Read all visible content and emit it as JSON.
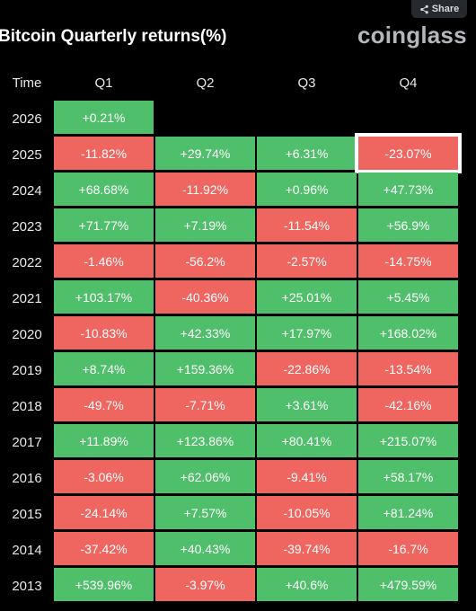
{
  "header": {
    "title": "Bitcoin Quarterly returns(%)",
    "logo": "coinglass",
    "share_label": "Share"
  },
  "table": {
    "time_label": "Time",
    "columns": [
      "Q1",
      "Q2",
      "Q3",
      "Q4"
    ],
    "rows": [
      {
        "year": "2026",
        "values": [
          "+0.21%",
          "",
          "",
          ""
        ]
      },
      {
        "year": "2025",
        "values": [
          "-11.82%",
          "+29.74%",
          "+6.31%",
          "-23.07%"
        ]
      },
      {
        "year": "2024",
        "values": [
          "+68.68%",
          "-11.92%",
          "+0.96%",
          "+47.73%"
        ]
      },
      {
        "year": "2023",
        "values": [
          "+71.77%",
          "+7.19%",
          "-11.54%",
          "+56.9%"
        ]
      },
      {
        "year": "2022",
        "values": [
          "-1.46%",
          "-56.2%",
          "-2.57%",
          "-14.75%"
        ]
      },
      {
        "year": "2021",
        "values": [
          "+103.17%",
          "-40.36%",
          "+25.01%",
          "+5.45%"
        ]
      },
      {
        "year": "2020",
        "values": [
          "-10.83%",
          "+42.33%",
          "+17.97%",
          "+168.02%"
        ]
      },
      {
        "year": "2019",
        "values": [
          "+8.74%",
          "+159.36%",
          "-22.86%",
          "-13.54%"
        ]
      },
      {
        "year": "2018",
        "values": [
          "-49.7%",
          "-7.71%",
          "+3.61%",
          "-42.16%"
        ]
      },
      {
        "year": "2017",
        "values": [
          "+11.89%",
          "+123.86%",
          "+80.41%",
          "+215.07%"
        ]
      },
      {
        "year": "2016",
        "values": [
          "-3.06%",
          "+62.06%",
          "-9.41%",
          "+58.17%"
        ]
      },
      {
        "year": "2015",
        "values": [
          "-24.14%",
          "+7.57%",
          "-10.05%",
          "+81.24%"
        ]
      },
      {
        "year": "2014",
        "values": [
          "-37.42%",
          "+40.43%",
          "-39.74%",
          "-16.7%"
        ]
      },
      {
        "year": "2013",
        "values": [
          "+539.96%",
          "-3.97%",
          "+40.6%",
          "+479.59%"
        ]
      }
    ],
    "highlighted": {
      "year": "2025",
      "column": "Q4"
    }
  },
  "colors": {
    "positive": "#4fbf6b",
    "negative": "#ef6560",
    "background": "#000000"
  },
  "icons": {
    "share": "share-icon"
  }
}
